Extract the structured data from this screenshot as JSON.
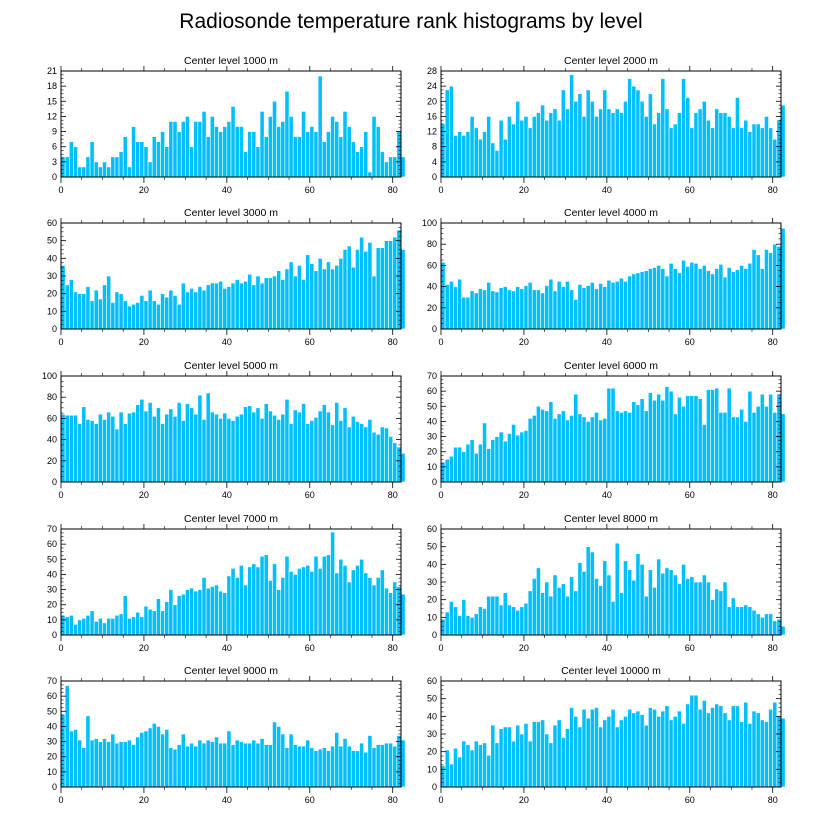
{
  "title": "Radiosonde temperature rank histograms by level",
  "colors": {
    "bar": "#00BFFF",
    "bar_edge": "#ffffff",
    "axis": "#000000"
  },
  "chart_data": [
    {
      "type": "bar",
      "title": "Center level 1000 m",
      "xlim": [
        0,
        82
      ],
      "ylim": [
        0,
        21
      ],
      "yticks": [
        "0",
        "3",
        "6",
        "9",
        "12",
        "15",
        "18",
        "21"
      ],
      "xticks": [
        "0",
        "20",
        "40",
        "60",
        "80"
      ],
      "values": [
        4,
        4,
        7,
        6,
        2,
        2,
        4,
        7,
        3,
        2,
        3,
        2,
        4,
        4,
        5,
        8,
        2,
        10,
        7,
        7,
        6,
        3,
        8,
        7,
        9,
        6,
        11,
        11,
        9,
        11,
        12,
        6,
        11,
        11,
        13,
        8,
        12,
        10,
        9,
        10,
        11,
        14,
        10,
        10,
        5,
        9,
        9,
        6,
        13,
        8,
        12,
        15,
        10,
        11,
        17,
        12,
        8,
        8,
        13,
        9,
        10,
        9,
        20,
        7,
        9,
        12,
        11,
        8,
        13,
        10,
        7,
        5,
        6,
        9,
        1,
        12,
        10,
        5,
        3,
        4,
        4,
        9,
        4
      ]
    },
    {
      "type": "bar",
      "title": "Center level 2000 m",
      "xlim": [
        0,
        82
      ],
      "ylim": [
        0,
        28
      ],
      "yticks": [
        "0",
        "4",
        "8",
        "12",
        "16",
        "20",
        "24",
        "28"
      ],
      "xticks": [
        "0",
        "20",
        "40",
        "60",
        "80"
      ],
      "values": [
        14,
        23,
        24,
        11,
        12,
        11,
        12,
        16,
        13,
        10,
        12,
        16,
        9,
        7,
        15,
        10,
        16,
        14,
        20,
        15,
        16,
        13,
        16,
        17,
        19,
        15,
        17,
        18,
        15,
        23,
        18,
        27,
        20,
        22,
        16,
        23,
        20,
        16,
        18,
        23,
        18,
        17,
        18,
        17,
        20,
        26,
        24,
        23,
        20,
        16,
        22,
        14,
        17,
        26,
        18,
        13,
        14,
        17,
        26,
        21,
        13,
        17,
        18,
        20,
        15,
        13,
        18,
        17,
        17,
        16,
        13,
        21,
        13,
        15,
        12,
        14,
        14,
        13,
        16,
        13,
        10,
        15,
        19
      ]
    },
    {
      "type": "bar",
      "title": "Center level 3000 m",
      "xlim": [
        0,
        82
      ],
      "ylim": [
        0,
        60
      ],
      "yticks": [
        "0",
        "10",
        "20",
        "30",
        "40",
        "50",
        "60"
      ],
      "xticks": [
        "0",
        "20",
        "40",
        "60",
        "80"
      ],
      "values": [
        36,
        25,
        28,
        21,
        20,
        20,
        24,
        16,
        22,
        17,
        25,
        30,
        15,
        21,
        20,
        16,
        13,
        14,
        15,
        19,
        16,
        22,
        16,
        14,
        20,
        18,
        22,
        19,
        14,
        26,
        21,
        23,
        21,
        24,
        22,
        25,
        26,
        26,
        27,
        23,
        24,
        26,
        28,
        26,
        27,
        31,
        25,
        30,
        26,
        29,
        29,
        30,
        33,
        28,
        34,
        38,
        30,
        36,
        28,
        42,
        37,
        33,
        40,
        34,
        38,
        34,
        36,
        40,
        45,
        47,
        35,
        45,
        52,
        44,
        49,
        30,
        46,
        46,
        50,
        50,
        52,
        56,
        45
      ]
    },
    {
      "type": "bar",
      "title": "Center level 4000 m",
      "xlim": [
        0,
        82
      ],
      "ylim": [
        0,
        100
      ],
      "yticks": [
        "0",
        "20",
        "40",
        "60",
        "80",
        "100"
      ],
      "xticks": [
        "0",
        "20",
        "40",
        "60",
        "80"
      ],
      "values": [
        63,
        42,
        45,
        40,
        47,
        30,
        30,
        36,
        34,
        38,
        37,
        44,
        36,
        35,
        39,
        40,
        37,
        36,
        40,
        38,
        41,
        44,
        37,
        37,
        34,
        41,
        47,
        36,
        45,
        40,
        45,
        37,
        28,
        42,
        39,
        41,
        44,
        38,
        43,
        40,
        46,
        44,
        45,
        48,
        45,
        50,
        52,
        53,
        54,
        55,
        57,
        58,
        60,
        57,
        50,
        62,
        57,
        53,
        65,
        59,
        63,
        62,
        57,
        60,
        55,
        52,
        57,
        61,
        49,
        58,
        54,
        56,
        60,
        57,
        62,
        75,
        70,
        57,
        75,
        72,
        80,
        78,
        95
      ]
    },
    {
      "type": "bar",
      "title": "Center level 5000 m",
      "xlim": [
        0,
        82
      ],
      "ylim": [
        0,
        100
      ],
      "yticks": [
        "0",
        "20",
        "40",
        "60",
        "80",
        "100"
      ],
      "xticks": [
        "0",
        "20",
        "40",
        "60",
        "80"
      ],
      "values": [
        64,
        63,
        63,
        63,
        55,
        71,
        59,
        58,
        55,
        64,
        59,
        66,
        62,
        50,
        66,
        55,
        65,
        66,
        73,
        78,
        67,
        75,
        62,
        70,
        55,
        64,
        69,
        62,
        75,
        58,
        74,
        70,
        64,
        82,
        59,
        84,
        66,
        64,
        60,
        65,
        60,
        58,
        62,
        64,
        71,
        72,
        66,
        70,
        60,
        74,
        67,
        63,
        59,
        64,
        78,
        55,
        68,
        66,
        74,
        55,
        58,
        61,
        67,
        73,
        66,
        54,
        75,
        58,
        70,
        52,
        62,
        57,
        55,
        52,
        59,
        47,
        45,
        52,
        51,
        43,
        37,
        33,
        27
      ]
    },
    {
      "type": "bar",
      "title": "Center level 6000 m",
      "xlim": [
        0,
        82
      ],
      "ylim": [
        0,
        70
      ],
      "yticks": [
        "0",
        "10",
        "20",
        "30",
        "40",
        "50",
        "60",
        "70"
      ],
      "xticks": [
        "0",
        "20",
        "40",
        "60",
        "80"
      ],
      "values": [
        13,
        15,
        17,
        23,
        23,
        20,
        25,
        28,
        19,
        25,
        39,
        22,
        28,
        30,
        33,
        27,
        32,
        38,
        31,
        33,
        34,
        42,
        44,
        50,
        48,
        47,
        53,
        42,
        45,
        47,
        41,
        44,
        58,
        45,
        43,
        40,
        43,
        46,
        41,
        42,
        62,
        62,
        47,
        46,
        47,
        46,
        53,
        51,
        55,
        47,
        59,
        54,
        58,
        54,
        63,
        60,
        45,
        56,
        50,
        57,
        57,
        57,
        55,
        38,
        61,
        61,
        62,
        46,
        46,
        62,
        43,
        43,
        48,
        40,
        60,
        46,
        50,
        58,
        50,
        58,
        46,
        58,
        45
      ]
    },
    {
      "type": "bar",
      "title": "Center level 7000 m",
      "xlim": [
        0,
        82
      ],
      "ylim": [
        0,
        70
      ],
      "yticks": [
        "0",
        "10",
        "20",
        "30",
        "40",
        "50",
        "60",
        "70"
      ],
      "xticks": [
        "0",
        "20",
        "40",
        "60",
        "80"
      ],
      "values": [
        13,
        12,
        13,
        7,
        10,
        11,
        13,
        16,
        9,
        11,
        8,
        11,
        11,
        13,
        14,
        26,
        11,
        12,
        15,
        12,
        19,
        17,
        16,
        24,
        16,
        22,
        30,
        20,
        26,
        27,
        30,
        31,
        29,
        30,
        38,
        31,
        32,
        33,
        29,
        28,
        39,
        44,
        38,
        46,
        33,
        45,
        47,
        45,
        52,
        53,
        36,
        47,
        30,
        38,
        52,
        42,
        40,
        44,
        45,
        46,
        42,
        52,
        44,
        52,
        53,
        68,
        41,
        50,
        46,
        35,
        43,
        46,
        50,
        41,
        38,
        33,
        38,
        43,
        31,
        28,
        35,
        32,
        27
      ]
    },
    {
      "type": "bar",
      "title": "Center level 8000 m",
      "xlim": [
        0,
        82
      ],
      "ylim": [
        0,
        60
      ],
      "yticks": [
        "0",
        "10",
        "20",
        "30",
        "40",
        "50",
        "60"
      ],
      "xticks": [
        "0",
        "20",
        "40",
        "60",
        "80"
      ],
      "values": [
        9,
        13,
        19,
        16,
        11,
        20,
        11,
        10,
        12,
        16,
        15,
        22,
        22,
        22,
        17,
        24,
        17,
        16,
        14,
        16,
        18,
        25,
        32,
        38,
        24,
        30,
        22,
        34,
        27,
        29,
        22,
        33,
        25,
        41,
        36,
        50,
        47,
        32,
        28,
        42,
        34,
        19,
        52,
        24,
        42,
        37,
        31,
        46,
        40,
        22,
        37,
        27,
        43,
        35,
        38,
        37,
        34,
        29,
        40,
        32,
        33,
        30,
        30,
        34,
        30,
        20,
        26,
        25,
        30,
        16,
        21,
        16,
        16,
        17,
        16,
        14,
        12,
        10,
        12,
        12,
        8,
        9,
        5
      ]
    },
    {
      "type": "bar",
      "title": "Center level 9000 m",
      "xlim": [
        0,
        82
      ],
      "ylim": [
        0,
        70
      ],
      "yticks": [
        "0",
        "10",
        "20",
        "30",
        "40",
        "50",
        "60",
        "70"
      ],
      "xticks": [
        "0",
        "20",
        "40",
        "60",
        "80"
      ],
      "values": [
        48,
        67,
        37,
        38,
        31,
        26,
        47,
        31,
        32,
        30,
        32,
        30,
        35,
        29,
        30,
        30,
        31,
        28,
        33,
        36,
        37,
        39,
        42,
        40,
        35,
        38,
        26,
        25,
        28,
        35,
        27,
        29,
        27,
        31,
        29,
        31,
        30,
        33,
        29,
        29,
        37,
        28,
        31,
        30,
        29,
        29,
        31,
        29,
        32,
        28,
        28,
        43,
        40,
        35,
        26,
        35,
        28,
        27,
        27,
        31,
        26,
        24,
        25,
        26,
        24,
        27,
        36,
        27,
        32,
        27,
        24,
        24,
        29,
        23,
        34,
        26,
        28,
        28,
        29,
        29,
        27,
        34,
        31
      ]
    },
    {
      "type": "bar",
      "title": "Center level 10000 m",
      "xlim": [
        0,
        82
      ],
      "ylim": [
        0,
        60
      ],
      "yticks": [
        "0",
        "10",
        "20",
        "30",
        "40",
        "50",
        "60"
      ],
      "xticks": [
        "0",
        "20",
        "40",
        "60",
        "80"
      ],
      "values": [
        12,
        21,
        13,
        22,
        17,
        26,
        24,
        21,
        26,
        24,
        25,
        18,
        35,
        25,
        33,
        34,
        34,
        26,
        35,
        30,
        36,
        26,
        37,
        37,
        38,
        30,
        25,
        35,
        38,
        28,
        33,
        45,
        40,
        34,
        44,
        39,
        44,
        45,
        34,
        38,
        40,
        44,
        34,
        38,
        40,
        44,
        42,
        43,
        41,
        35,
        45,
        44,
        40,
        43,
        46,
        38,
        40,
        43,
        36,
        47,
        52,
        52,
        44,
        49,
        42,
        45,
        47,
        46,
        42,
        38,
        46,
        46,
        37,
        48,
        36,
        43,
        42,
        38,
        37,
        44,
        48,
        40,
        39
      ]
    }
  ]
}
